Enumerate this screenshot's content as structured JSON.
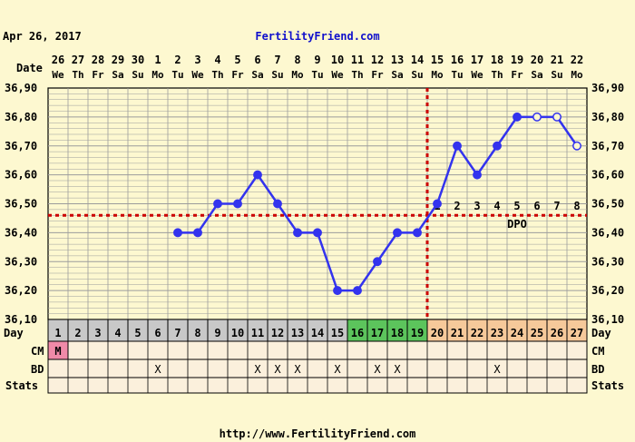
{
  "header": {
    "date": "Apr 26, 2017",
    "brand": "FertilityFriend.com",
    "footer_url": "http://www.FertilityFriend.com"
  },
  "labels": {
    "date": "Date",
    "day": "Day",
    "cm": "CM",
    "bd": "BD",
    "stats": "Stats",
    "dpo": "DPO"
  },
  "colors": {
    "background": "#fdf8d0",
    "grid": "#9c9c9c",
    "line": "#3333ee",
    "coverline": "#cc0000",
    "brand": "#1010cc",
    "day_gray": "#c8c8c8",
    "day_green": "#5cc45c",
    "day_orange": "#f6c99a",
    "cm_pink": "#f08aa8",
    "row_bg": "#fbf0dc"
  },
  "chart_data": {
    "type": "line",
    "title": "",
    "ylim": [
      36.1,
      36.9
    ],
    "ytick_labels": [
      "36,90",
      "36,80",
      "36,70",
      "36,60",
      "36,50",
      "36,40",
      "36,30",
      "36,20",
      "36,10"
    ],
    "coverline": 36.46,
    "ovulation_day": 19,
    "grid": true,
    "dates": [
      "26",
      "27",
      "28",
      "29",
      "30",
      "1",
      "2",
      "3",
      "4",
      "5",
      "6",
      "7",
      "8",
      "9",
      "10",
      "11",
      "12",
      "13",
      "14",
      "15",
      "16",
      "17",
      "18",
      "19",
      "20",
      "21",
      "22"
    ],
    "weekdays": [
      "We",
      "Th",
      "Fr",
      "Sa",
      "Su",
      "Mo",
      "Tu",
      "We",
      "Th",
      "Fr",
      "Sa",
      "Su",
      "Mo",
      "Tu",
      "We",
      "Th",
      "Fr",
      "Sa",
      "Su",
      "Mo",
      "Tu",
      "We",
      "Th",
      "Fr",
      "Sa",
      "Su",
      "Mo"
    ],
    "cycle_days": [
      1,
      2,
      3,
      4,
      5,
      6,
      7,
      8,
      9,
      10,
      11,
      12,
      13,
      14,
      15,
      16,
      17,
      18,
      19,
      20,
      21,
      22,
      23,
      24,
      25,
      26,
      27
    ],
    "day_colors": [
      "gray",
      "gray",
      "gray",
      "gray",
      "gray",
      "gray",
      "gray",
      "gray",
      "gray",
      "gray",
      "gray",
      "gray",
      "gray",
      "gray",
      "gray",
      "green",
      "green",
      "green",
      "green",
      "orange",
      "orange",
      "orange",
      "orange",
      "orange",
      "orange",
      "orange",
      "orange"
    ],
    "series": [
      {
        "days": [
          7,
          8,
          9,
          10,
          11,
          12,
          13,
          14,
          15,
          16,
          17,
          18,
          19,
          20,
          21,
          22,
          23,
          24,
          25,
          26,
          27
        ],
        "temps": [
          36.4,
          36.4,
          36.5,
          36.5,
          36.6,
          36.5,
          36.4,
          36.4,
          36.2,
          36.2,
          36.3,
          36.4,
          36.4,
          36.5,
          36.7,
          36.6,
          36.7,
          36.8,
          36.8,
          36.8,
          36.7
        ],
        "open_points": [
          25,
          26,
          27
        ]
      }
    ],
    "dpo": {
      "start_day": 20,
      "numbers": [
        "1",
        "2",
        "3",
        "4",
        "5",
        "6",
        "7",
        "8"
      ]
    },
    "cm": [
      {
        "day": 1,
        "value": "M"
      }
    ],
    "bd_days": [
      6,
      11,
      12,
      13,
      15,
      17,
      18,
      23
    ],
    "bd_mark": "X"
  }
}
